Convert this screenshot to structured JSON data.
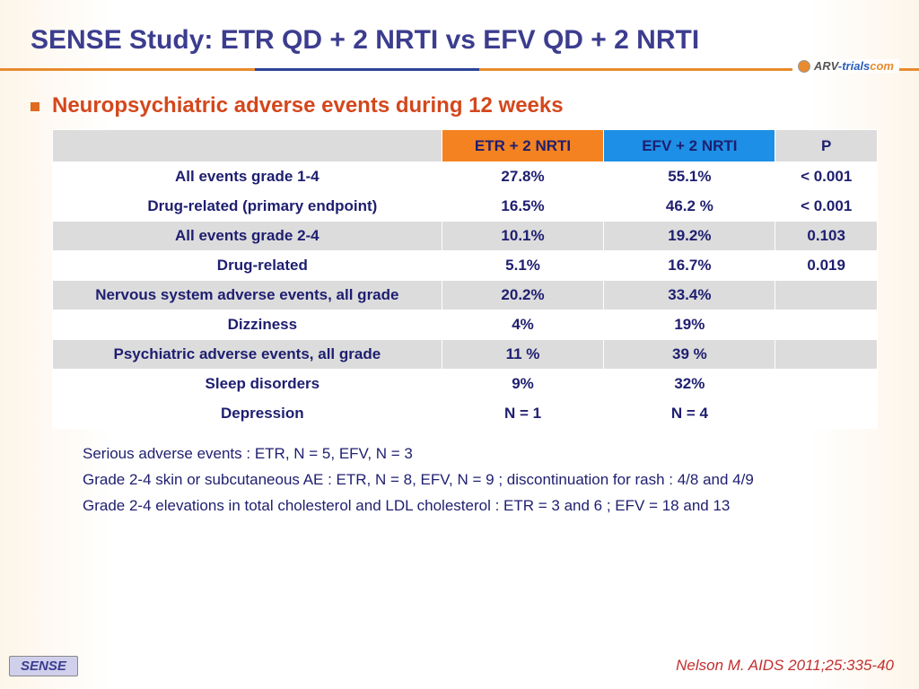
{
  "title": "SENSE Study: ETR QD + 2 NRTI vs EFV QD + 2 NRTI",
  "brand": {
    "part1": "ARV",
    "part2": "-trials",
    "part3": "com"
  },
  "subtitle": "Neuropsychiatric adverse events during 12 weeks",
  "table": {
    "headers": {
      "blank": "",
      "c1": "ETR + 2 NRTI",
      "c2": "EFV + 2 NRTI",
      "c3": "P"
    },
    "rows": [
      {
        "label": "All events grade 1-4",
        "indent": false,
        "shade": "white",
        "v1": "27.8%",
        "v2": "55.1%",
        "v3": "< 0.001"
      },
      {
        "label": "Drug-related (primary endpoint)",
        "indent": true,
        "shade": "white",
        "v1": "16.5%",
        "v2": "46.2 %",
        "v3": "< 0.001"
      },
      {
        "label": "All events grade 2-4",
        "indent": false,
        "shade": "gray",
        "v1": "10.1%",
        "v2": "19.2%",
        "v3": "0.103"
      },
      {
        "label": "Drug-related",
        "indent": true,
        "shade": "white",
        "v1": "5.1%",
        "v2": "16.7%",
        "v3": "0.019"
      },
      {
        "label": "Nervous system adverse events, all grade",
        "indent": false,
        "shade": "gray",
        "v1": "20.2%",
        "v2": "33.4%",
        "v3": ""
      },
      {
        "label": "Dizziness",
        "indent": true,
        "shade": "white",
        "v1": "4%",
        "v2": "19%",
        "v3": ""
      },
      {
        "label": "Psychiatric adverse events, all grade",
        "indent": false,
        "shade": "gray",
        "v1": "11 %",
        "v2": "39 %",
        "v3": ""
      },
      {
        "label": "Sleep disorders",
        "indent": true,
        "shade": "white",
        "v1": "9%",
        "v2": "32%",
        "v3": ""
      },
      {
        "label": "Depression",
        "indent": true,
        "shade": "white",
        "v1": "N = 1",
        "v2": "N = 4",
        "v3": ""
      }
    ]
  },
  "notes": [
    "Serious adverse events : ETR, N = 5, EFV, N = 3",
    "Grade 2-4 skin or subcutaneous AE : ETR, N = 8, EFV, N = 9 ; discontinuation for rash : 4/8 and 4/9",
    "Grade 2-4 elevations in total cholesterol and LDL cholesterol : ETR = 3 and 6 ; EFV = 18 and 13"
  ],
  "footer_badge": "SENSE",
  "citation": "Nelson M. AIDS 2011;25:335-40",
  "colors": {
    "title": "#3c3d8f",
    "subtitle": "#d4471c",
    "etr_header": "#f58220",
    "efv_header": "#1d8fe6",
    "gray": "#dcdcdc",
    "text": "#1e1e70"
  }
}
